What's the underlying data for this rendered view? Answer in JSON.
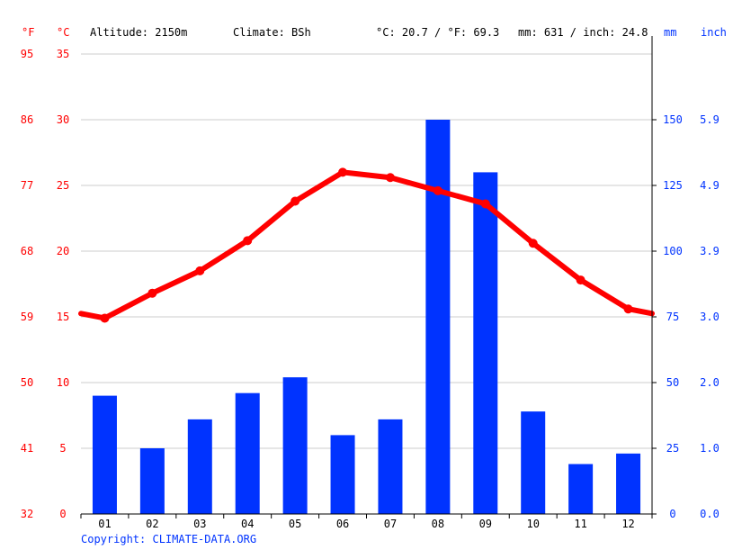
{
  "header": {
    "unit_f": "°F",
    "unit_c": "°C",
    "altitude": "Altitude: 2150m",
    "climate": "Climate: BSh",
    "temp_avg": "°C: 20.7 / °F: 69.3",
    "precip_avg": "mm: 631 / inch: 24.8",
    "unit_mm": "mm",
    "unit_inch": "inch"
  },
  "footer": {
    "copyright": "Copyright: CLIMATE-DATA.ORG"
  },
  "colors": {
    "temperature": "#ff0000",
    "precipitation": "#0033ff",
    "grid": "#cccccc"
  },
  "axes": {
    "left_c": [
      "35",
      "30",
      "25",
      "20",
      "15",
      "10",
      "5",
      "0"
    ],
    "left_f": [
      "95",
      "86",
      "77",
      "68",
      "59",
      "50",
      "41",
      "32"
    ],
    "right_mm": [
      "150",
      "125",
      "100",
      "75",
      "50",
      "25",
      "0"
    ],
    "right_inch": [
      "5.9",
      "4.9",
      "3.9",
      "3.0",
      "2.0",
      "1.0",
      "0.0"
    ]
  },
  "chart_data": {
    "type": "bar+line",
    "categories": [
      "01",
      "02",
      "03",
      "04",
      "05",
      "06",
      "07",
      "08",
      "09",
      "10",
      "11",
      "12"
    ],
    "series": [
      {
        "type": "bar",
        "axis": "right",
        "unit": "mm",
        "values": [
          45,
          25,
          36,
          46,
          52,
          30,
          36,
          150,
          130,
          39,
          19,
          23
        ]
      },
      {
        "type": "line",
        "axis": "left",
        "unit": "°C",
        "values": [
          14.9,
          16.8,
          18.5,
          20.8,
          23.8,
          26.0,
          25.6,
          24.6,
          23.6,
          20.6,
          17.8,
          15.6
        ]
      }
    ],
    "y_left_c_lim": [
      0,
      35
    ],
    "y_right_mm_lim": [
      0,
      175
    ],
    "grid": true
  }
}
